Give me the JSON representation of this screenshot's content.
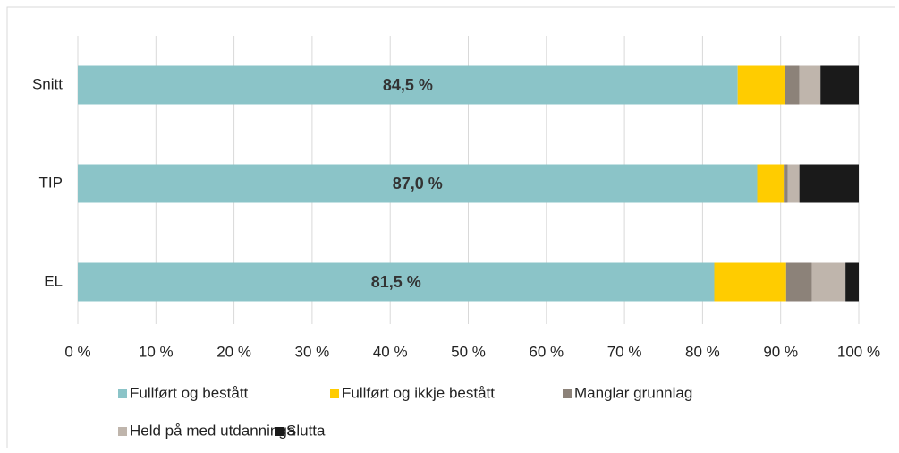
{
  "chart_data": {
    "type": "stacked_bar_horizontal",
    "categories": [
      "Snitt",
      "TIP",
      "EL"
    ],
    "series": [
      {
        "name": "Fullført og bestått",
        "color": "#8bc4c8",
        "values": [
          84.5,
          87.0,
          81.5
        ],
        "value_labels": [
          "84,5 %",
          "87,0 %",
          "81,5 %"
        ]
      },
      {
        "name": "Fullført og ikkje bestått",
        "color": "#ffcc00",
        "values": [
          6.1,
          3.4,
          9.2
        ]
      },
      {
        "name": "Manglar grunnlag",
        "color": "#8c8279",
        "values": [
          1.8,
          0.5,
          3.3
        ]
      },
      {
        "name": "Held på med utdanninga",
        "color": "#bfb5ac",
        "values": [
          2.7,
          1.5,
          4.3
        ]
      },
      {
        "name": "Slutta",
        "color": "#1a1a1a",
        "values": [
          4.9,
          7.6,
          1.7
        ]
      }
    ],
    "xlim": [
      0,
      100
    ],
    "xticks": [
      {
        "value": 0,
        "label": "0 %"
      },
      {
        "value": 10,
        "label": "10 %"
      },
      {
        "value": 20,
        "label": "20 %"
      },
      {
        "value": 30,
        "label": "30 %"
      },
      {
        "value": 40,
        "label": "40 %"
      },
      {
        "value": 50,
        "label": "50 %"
      },
      {
        "value": 60,
        "label": "60 %"
      },
      {
        "value": 70,
        "label": "70 %"
      },
      {
        "value": 80,
        "label": "80 %"
      },
      {
        "value": 90,
        "label": "90 %"
      },
      {
        "value": 100,
        "label": "100 %"
      }
    ],
    "grid": true
  }
}
